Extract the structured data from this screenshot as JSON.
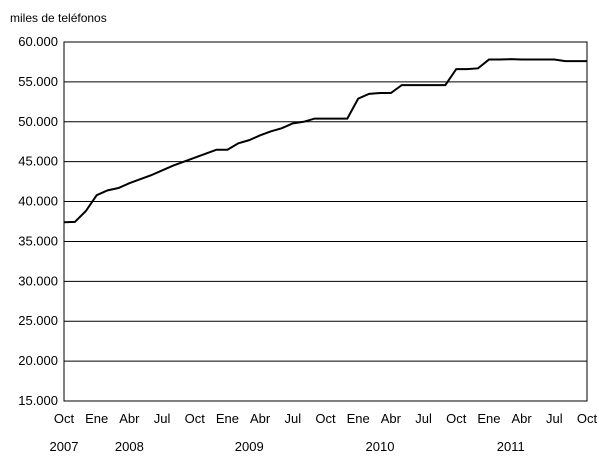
{
  "chart_data": {
    "type": "line",
    "ylabel": "miles de teléfonos",
    "ylim": [
      15000,
      60000
    ],
    "yticks": [
      15000,
      20000,
      25000,
      30000,
      35000,
      40000,
      45000,
      50000,
      55000,
      60000
    ],
    "ytick_labels": [
      "15.000",
      "20.000",
      "25.000",
      "30.000",
      "35.000",
      "40.000",
      "45.000",
      "50.000",
      "55.000",
      "60.000"
    ],
    "grid": true,
    "x_tick_labels": [
      "Oct",
      "Ene",
      "Abr",
      "Jul",
      "Oct",
      "Ene",
      "Abr",
      "Jul",
      "Oct",
      "Ene",
      "Abr",
      "Jul",
      "Oct",
      "Ene",
      "Abr",
      "Jul",
      "Oct"
    ],
    "year_labels": [
      {
        "label": "2007",
        "month_index": 0
      },
      {
        "label": "2008",
        "month_index": 6
      },
      {
        "label": "2009",
        "month_index": 17
      },
      {
        "label": "2010",
        "month_index": 29
      },
      {
        "label": "2011",
        "month_index": 41
      }
    ],
    "x_range_months": [
      0,
      48
    ],
    "series": [
      {
        "x": [
          0,
          1,
          2,
          3,
          4,
          5,
          6,
          7,
          8,
          9,
          10,
          11,
          12,
          13,
          14,
          15,
          16,
          17,
          18,
          19,
          20,
          21,
          22,
          23,
          24,
          25,
          26,
          27,
          28,
          29,
          30,
          31,
          32,
          33,
          34,
          35,
          36,
          37,
          38,
          39,
          40,
          41,
          42,
          43,
          44,
          45,
          46,
          47,
          48
        ],
        "values": [
          37400,
          37450,
          38800,
          40800,
          41400,
          41700,
          42300,
          42800,
          43300,
          43900,
          44500,
          45000,
          45500,
          46000,
          46500,
          46500,
          47300,
          47700,
          48300,
          48800,
          49200,
          49800,
          50000,
          50400,
          50400,
          50400,
          50400,
          52900,
          53500,
          53600,
          53600,
          54600,
          54600,
          54600,
          54600,
          54600,
          56600,
          56600,
          56700,
          57800,
          57800,
          57850,
          57800,
          57800,
          57800,
          57800,
          57600,
          57600,
          57600
        ]
      }
    ]
  }
}
